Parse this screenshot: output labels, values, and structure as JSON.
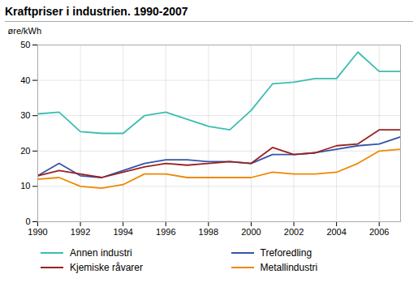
{
  "chart_data": {
    "type": "line",
    "title": "Kraftpriser i industrien. 1990-2007",
    "ylabel": "øre/kWh",
    "x": [
      1990,
      1991,
      1992,
      1993,
      1994,
      1995,
      1996,
      1997,
      1998,
      1999,
      2000,
      2001,
      2002,
      2003,
      2004,
      2005,
      2006,
      2007
    ],
    "series": [
      {
        "name": "Annen industri",
        "color": "#3dbdb0",
        "values": [
          30.5,
          31.0,
          25.5,
          25.0,
          25.0,
          30.0,
          31.0,
          29.0,
          27.0,
          26.0,
          31.5,
          39.0,
          39.5,
          40.5,
          40.5,
          48.0,
          42.5,
          42.5
        ]
      },
      {
        "name": "Treforedling",
        "color": "#3355aa",
        "values": [
          13.0,
          16.5,
          13.0,
          12.5,
          14.5,
          16.5,
          17.5,
          17.5,
          17.0,
          17.0,
          16.5,
          19.0,
          19.0,
          19.5,
          20.5,
          21.5,
          22.0,
          24.0
        ]
      },
      {
        "name": "Kjemiske råvarer",
        "color": "#992222",
        "values": [
          13.0,
          14.5,
          13.5,
          12.5,
          14.0,
          15.5,
          16.5,
          16.0,
          16.5,
          17.0,
          16.5,
          21.0,
          19.0,
          19.5,
          21.5,
          22.0,
          26.0,
          26.0
        ]
      },
      {
        "name": "Metallindustri",
        "color": "#ee8800",
        "values": [
          12.0,
          12.5,
          10.0,
          9.5,
          10.5,
          13.5,
          13.5,
          12.5,
          12.5,
          12.5,
          12.5,
          14.0,
          13.5,
          13.5,
          14.0,
          16.5,
          20.0,
          20.5
        ]
      }
    ],
    "xlim": [
      1990,
      2007
    ],
    "xticks": [
      1990,
      1992,
      1994,
      1996,
      1998,
      2000,
      2002,
      2004,
      2006
    ],
    "ylim": [
      0,
      50
    ],
    "yticks": [
      0,
      10,
      20,
      30,
      40,
      50
    ],
    "grid": true,
    "legend": "bottom"
  }
}
